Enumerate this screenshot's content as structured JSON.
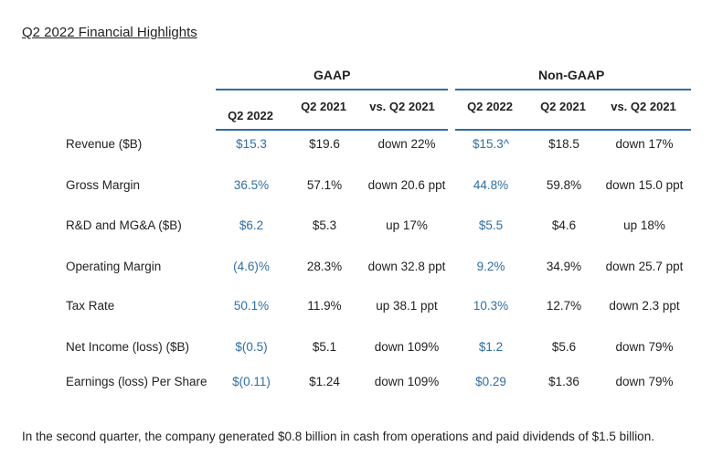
{
  "title": "Q2 2022 Financial Highlights",
  "groups": {
    "gaap": "GAAP",
    "non_gaap": "Non-GAAP"
  },
  "columns": [
    "Q2 2022",
    "Q2 2021",
    "vs. Q2 2021",
    "Q2 2022",
    "Q2 2021",
    "vs. Q2 2021"
  ],
  "rows": [
    {
      "label": "Revenue ($B)",
      "values": [
        "$15.3",
        "$19.6",
        "down 22%",
        "$15.3^",
        "$18.5",
        "down 17%"
      ]
    },
    {
      "label": "Gross Margin",
      "values": [
        "36.5%",
        "57.1%",
        "down 20.6 ppt",
        "44.8%",
        "59.8%",
        "down 15.0 ppt"
      ]
    },
    {
      "label": "R&D and MG&A ($B)",
      "values": [
        "$6.2",
        "$5.3",
        "up 17%",
        "$5.5",
        "$4.6",
        "up 18%"
      ]
    },
    {
      "label": "Operating Margin",
      "values": [
        "(4.6)%",
        "28.3%",
        "down 32.8 ppt",
        "9.2%",
        "34.9%",
        "down 25.7 ppt"
      ]
    },
    {
      "label": "Tax Rate",
      "values": [
        "50.1%",
        "11.9%",
        "up 38.1 ppt",
        "10.3%",
        "12.7%",
        "down 2.3 ppt"
      ]
    },
    {
      "label": "Net Income (loss) ($B)",
      "values": [
        "$(0.5)",
        "$5.1",
        "down 109%",
        "$1.2",
        "$5.6",
        "down 79%"
      ]
    },
    {
      "label": "Earnings (loss) Per Share",
      "values": [
        "$(0.11)",
        "$1.24",
        "down 109%",
        "$0.29",
        "$1.36",
        "down 79%"
      ]
    }
  ],
  "footnote": "In the second quarter, the company generated $0.8 billion in cash from operations and paid dividends of $1.5 billion.",
  "colors": {
    "accent": "#2e6ea6",
    "text": "#222222"
  }
}
